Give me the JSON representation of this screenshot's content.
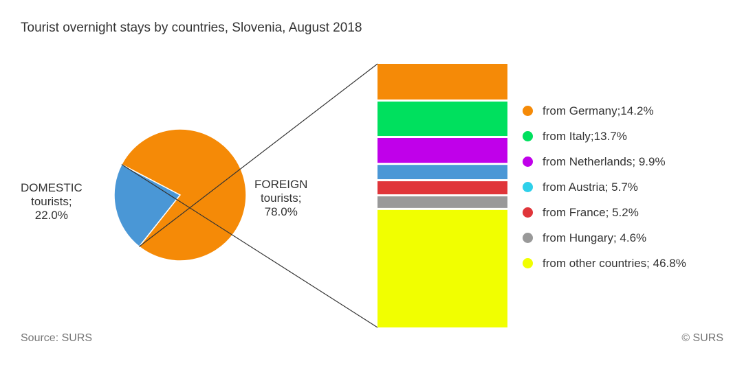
{
  "chart_data": {
    "type": "pie",
    "title": "Tourist overnight stays by countries, Slovenia, August 2018",
    "pie": [
      {
        "key": "domestic",
        "line1": "DOMESTIC",
        "line2": "tourists;",
        "line3": "22.0%",
        "value": 22.0,
        "color": "#4a97d6"
      },
      {
        "key": "foreign",
        "line1": "FOREIGN",
        "line2": "tourists;",
        "line3": "78.0%",
        "value": 78.0,
        "color": "#f58a07"
      }
    ],
    "breakdown": [
      {
        "label": "from Germany;14.2%",
        "value": 14.2,
        "color": "#f58a07"
      },
      {
        "label": "from Italy;13.7%",
        "value": 13.7,
        "color": "#00e05e"
      },
      {
        "label": "from Netherlands; 9.9%",
        "value": 9.9,
        "color": "#c000ea"
      },
      {
        "label": "from Austria; 5.7%",
        "value": 5.7,
        "color": "#2ed0ea"
      },
      {
        "label": "from France; 5.2%",
        "value": 5.2,
        "color": "#e0353a"
      },
      {
        "label": "from Hungary; 4.6%",
        "value": 4.6,
        "color": "#999999"
      },
      {
        "label": "from other countries; 46.8%",
        "value": 46.8,
        "color": "#f1ff00"
      }
    ],
    "bar_segment_colors": [
      "#f58a07",
      "#00e05e",
      "#c000ea",
      "#4a97d6",
      "#e0353a",
      "#999999",
      "#f1ff00"
    ]
  },
  "footer": {
    "source": "Source: SURS",
    "copyright": "© SURS"
  }
}
